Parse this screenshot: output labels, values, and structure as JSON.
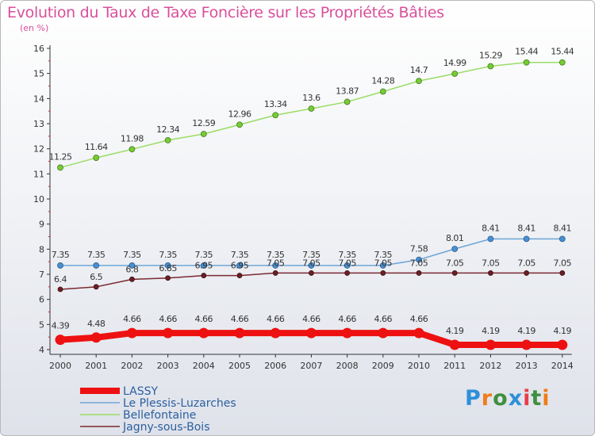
{
  "title": "Evolution du Taux de Taxe Foncière sur les Propriétés Bâties",
  "unit_label": "(en %)",
  "logo": {
    "text": "Proxiti",
    "letters": [
      "P",
      "r",
      "o",
      "x",
      "i",
      "t",
      "i"
    ]
  },
  "chart_data": {
    "type": "line",
    "title": "Evolution du Taux de Taxe Foncière sur les Propriétés Bâties",
    "ylabel": "(en %)",
    "xlabel": "",
    "ylim": [
      4,
      16
    ],
    "yticks": [
      "4",
      "5",
      "6",
      "7",
      "8",
      "9",
      "10",
      "11",
      "12",
      "13",
      "14",
      "15",
      "16"
    ],
    "x": [
      "2000",
      "2001",
      "2002",
      "2003",
      "2004",
      "2005",
      "2006",
      "2007",
      "2008",
      "2009",
      "2010",
      "2011",
      "2012",
      "2013",
      "2014"
    ],
    "grid": false,
    "legend_position": "bottom-left",
    "series": [
      {
        "name": "LASSY",
        "color": "#ee1111",
        "values": [
          4.39,
          4.48,
          4.66,
          4.66,
          4.66,
          4.66,
          4.66,
          4.66,
          4.66,
          4.66,
          4.66,
          4.19,
          4.19,
          4.19,
          4.19
        ],
        "labels": [
          "4.39",
          "4.48",
          "4.66",
          "4.66",
          "4.66",
          "4.66",
          "4.66",
          "4.66",
          "4.66",
          "4.66",
          "4.66",
          "4.19",
          "4.19",
          "4.19",
          "4.19"
        ]
      },
      {
        "name": "Le Plessis-Luzarches",
        "color": "#6fa6d6",
        "values": [
          7.35,
          7.35,
          7.35,
          7.35,
          7.35,
          7.35,
          7.35,
          7.35,
          7.35,
          7.35,
          7.58,
          8.01,
          8.41,
          8.41,
          8.41
        ],
        "labels": [
          "7.35",
          "7.35",
          "7.35",
          "7.35",
          "7.35",
          "7.35",
          "7.35",
          "7.35",
          "7.35",
          "7.35",
          "7.58",
          "8.01",
          "8.41",
          "8.41",
          "8.41"
        ]
      },
      {
        "name": "Bellefontaine",
        "color": "#99dd66",
        "values": [
          11.25,
          11.64,
          11.98,
          12.34,
          12.59,
          12.96,
          13.34,
          13.6,
          13.87,
          14.28,
          14.7,
          14.99,
          15.29,
          15.44,
          15.44
        ],
        "labels": [
          "11.25",
          "11.64",
          "11.98",
          "12.34",
          "12.59",
          "12.96",
          "13.34",
          "13.6",
          "13.87",
          "14.28",
          "14.7",
          "14.99",
          "15.29",
          "15.44",
          "15.44"
        ]
      },
      {
        "name": "Jagny-sous-Bois",
        "color": "#7a2a30",
        "values": [
          6.4,
          6.5,
          6.8,
          6.85,
          6.95,
          6.95,
          7.05,
          7.05,
          7.05,
          7.05,
          7.05,
          7.05,
          7.05,
          7.05,
          7.05
        ],
        "labels": [
          "6.4",
          "6.5",
          "6.8",
          "6.85",
          "6.95",
          "6.95",
          "7.05",
          "7.05",
          "7.05",
          "7.05",
          "7.05",
          "7.05",
          "7.05",
          "7.05",
          "7.05"
        ]
      }
    ]
  }
}
